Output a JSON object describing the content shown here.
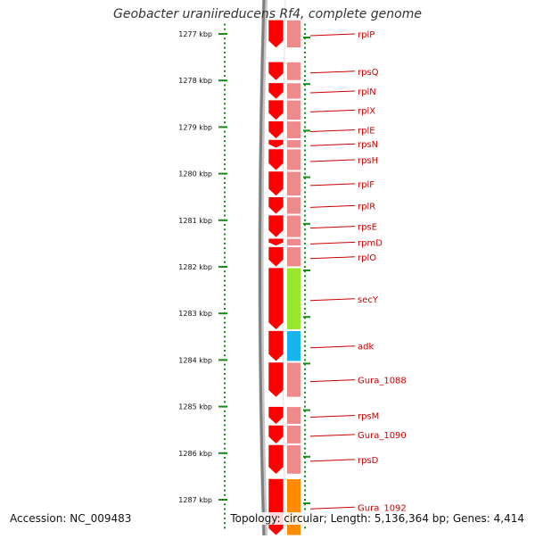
{
  "title": "Geobacter uraniireducens Rf4, complete genome",
  "footer": {
    "accession": "Accession: NC_009483",
    "summary": "Topology: circular; Length: 5,136,364 bp; Genes: 4,414"
  },
  "colors": {
    "gene_red": "#ff0000",
    "track_pink": "#ee8a8a",
    "backbone_gray": "#808080",
    "tick_green": "#1a8a1a",
    "label_red": "#cc0000",
    "secY": "#99e62e",
    "adk": "#18b4ee",
    "Gura_1092": "#ff8c00"
  },
  "scale": {
    "unit": "kbp",
    "ticks": [
      {
        "kbp": 1277,
        "label": "1277 kbp"
      },
      {
        "kbp": 1278,
        "label": "1278 kbp"
      },
      {
        "kbp": 1279,
        "label": "1279 kbp"
      },
      {
        "kbp": 1280,
        "label": "1280 kbp"
      },
      {
        "kbp": 1281,
        "label": "1281 kbp"
      },
      {
        "kbp": 1282,
        "label": "1282 kbp"
      },
      {
        "kbp": 1283,
        "label": "1283 kbp"
      },
      {
        "kbp": 1284,
        "label": "1284 kbp"
      },
      {
        "kbp": 1285,
        "label": "1285 kbp"
      },
      {
        "kbp": 1286,
        "label": "1286 kbp"
      },
      {
        "kbp": 1287,
        "label": "1287 kbp"
      }
    ]
  },
  "genes": [
    {
      "name": "rplP",
      "start": 1276.7,
      "end": 1277.3,
      "color": "red"
    },
    {
      "name": "rpsQ",
      "start": 1277.6,
      "end": 1278.0,
      "color": "red"
    },
    {
      "name": "rplN",
      "start": 1278.05,
      "end": 1278.4,
      "color": "red"
    },
    {
      "name": "rplX",
      "start": 1278.42,
      "end": 1278.85,
      "color": "red"
    },
    {
      "name": "rplE",
      "start": 1278.87,
      "end": 1279.25,
      "color": "red"
    },
    {
      "name": "rpsN",
      "start": 1279.27,
      "end": 1279.45,
      "color": "red"
    },
    {
      "name": "rpsH",
      "start": 1279.47,
      "end": 1279.93,
      "color": "red"
    },
    {
      "name": "rplF",
      "start": 1279.95,
      "end": 1280.48,
      "color": "red"
    },
    {
      "name": "rplR",
      "start": 1280.5,
      "end": 1280.87,
      "color": "red"
    },
    {
      "name": "rpsE",
      "start": 1280.89,
      "end": 1281.37,
      "color": "red"
    },
    {
      "name": "rpmD",
      "start": 1281.39,
      "end": 1281.55,
      "color": "red"
    },
    {
      "name": "rplO",
      "start": 1281.57,
      "end": 1282.0,
      "color": "red"
    },
    {
      "name": "secY",
      "start": 1282.02,
      "end": 1283.35,
      "color": "lime"
    },
    {
      "name": "adk",
      "start": 1283.37,
      "end": 1284.03,
      "color": "blue"
    },
    {
      "name": "Gura_1088",
      "start": 1284.05,
      "end": 1284.8,
      "color": "red"
    },
    {
      "name": "rpsM",
      "start": 1285.0,
      "end": 1285.38,
      "color": "red"
    },
    {
      "name": "Gura_1090",
      "start": 1285.4,
      "end": 1285.8,
      "color": "red"
    },
    {
      "name": "rpsD",
      "start": 1285.82,
      "end": 1286.45,
      "color": "red"
    },
    {
      "name": "Gura_1092",
      "start": 1286.55,
      "end": 1287.8,
      "color": "orange"
    }
  ]
}
